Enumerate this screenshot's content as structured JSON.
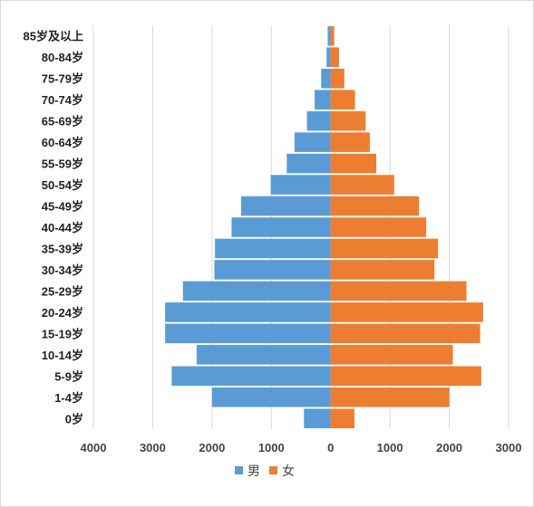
{
  "chart_data": {
    "type": "bar",
    "orientation": "horizontal",
    "subtype": "population-pyramid",
    "categories": [
      "0岁",
      "1-4岁",
      "5-9岁",
      "10-14岁",
      "15-19岁",
      "20-24岁",
      "25-29岁",
      "30-34岁",
      "35-39岁",
      "40-44岁",
      "45-49岁",
      "50-54岁",
      "55-59岁",
      "60-64岁",
      "65-69岁",
      "70-74岁",
      "75-79岁",
      "80-84岁",
      "85岁及以上"
    ],
    "series": [
      {
        "name": "男",
        "color": "#5b9bd5",
        "values": [
          450,
          2000,
          2680,
          2260,
          2790,
          2790,
          2490,
          1960,
          1950,
          1670,
          1510,
          1010,
          740,
          610,
          400,
          270,
          160,
          70,
          50
        ]
      },
      {
        "name": "女",
        "color": "#ed7d31",
        "values": [
          400,
          2000,
          2540,
          2060,
          2520,
          2570,
          2290,
          1750,
          1810,
          1610,
          1490,
          1070,
          770,
          660,
          590,
          410,
          230,
          140,
          60
        ]
      }
    ],
    "xlim": [
      -4000,
      3000
    ],
    "x_ticks": [
      -4000,
      -3000,
      -2000,
      -1000,
      0,
      1000,
      2000,
      3000
    ],
    "x_tick_labels": [
      "4000",
      "3000",
      "2000",
      "1000",
      "0",
      "1000",
      "2000",
      "3000"
    ],
    "grid": true,
    "legend": "bottom"
  }
}
